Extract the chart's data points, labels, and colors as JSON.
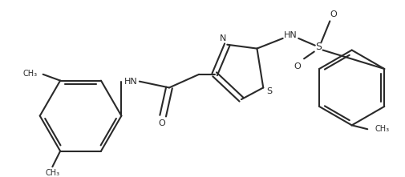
{
  "background_color": "#ffffff",
  "line_color": "#2a2a2a",
  "line_width": 1.5,
  "figsize": [
    5.06,
    2.21
  ],
  "dpi": 100,
  "xlim": [
    0,
    506
  ],
  "ylim": [
    0,
    221
  ]
}
